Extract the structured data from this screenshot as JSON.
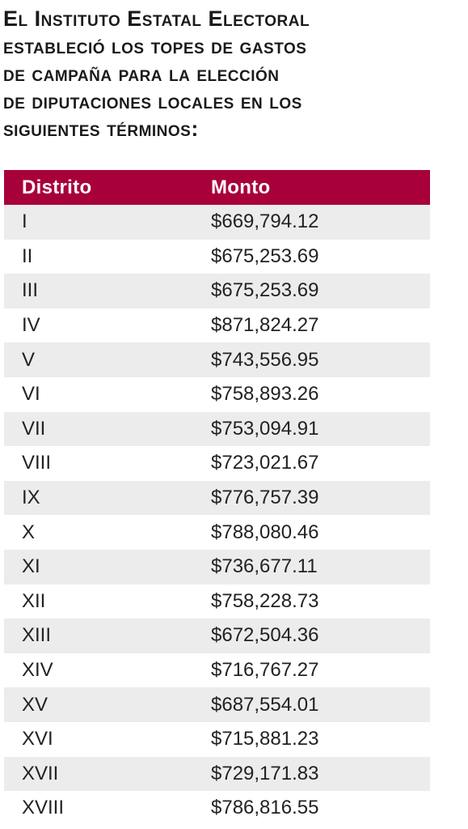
{
  "heading": {
    "lines": [
      "El Instituto Estatal Electoral",
      "estableció los topes de gastos",
      "de campaña para la elección",
      "de diputaciones locales en los",
      "siguientes términos:"
    ]
  },
  "table": {
    "header": {
      "col1": "Distrito",
      "col2": "Monto"
    },
    "header_color": "#a8003a",
    "rows": [
      {
        "distrito": "I",
        "monto": "$669,794.12"
      },
      {
        "distrito": "II",
        "monto": "$675,253.69"
      },
      {
        "distrito": "III",
        "monto": "$675,253.69"
      },
      {
        "distrito": "IV",
        "monto": "$871,824.27"
      },
      {
        "distrito": "V",
        "monto": "$743,556.95"
      },
      {
        "distrito": "VI",
        "monto": "$758,893.26"
      },
      {
        "distrito": "VII",
        "monto": "$753,094.91"
      },
      {
        "distrito": "VIII",
        "monto": "$723,021.67"
      },
      {
        "distrito": "IX",
        "monto": "$776,757.39"
      },
      {
        "distrito": "X",
        "monto": "$788,080.46"
      },
      {
        "distrito": "XI",
        "monto": "$736,677.11"
      },
      {
        "distrito": "XII",
        "monto": "$758,228.73"
      },
      {
        "distrito": "XIII",
        "monto": "$672,504.36"
      },
      {
        "distrito": "XIV",
        "monto": "$716,767.27"
      },
      {
        "distrito": "XV",
        "monto": "$687,554.01"
      },
      {
        "distrito": "XVI",
        "monto": "$715,881.23"
      },
      {
        "distrito": "XVII",
        "monto": "$729,171.83"
      },
      {
        "distrito": "XVIII",
        "monto": "$786,816.55"
      }
    ]
  }
}
